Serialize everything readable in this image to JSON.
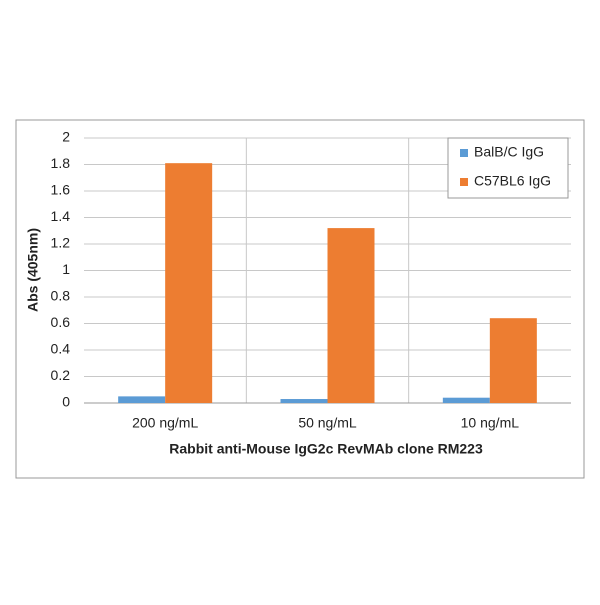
{
  "chart_data": {
    "type": "bar",
    "x_label": "Rabbit anti-Mouse  IgG2c RevMAb clone RM223",
    "y_label": "Abs (405nm)",
    "categories": [
      "200 ng/mL",
      "50 ng/mL",
      "10 ng/mL"
    ],
    "series": [
      {
        "name": "BalB/C IgG",
        "color": "#5b9bd5",
        "values": [
          0.05,
          0.03,
          0.04
        ]
      },
      {
        "name": "C57BL6 IgG",
        "color": "#ed7d31",
        "values": [
          1.81,
          1.32,
          0.64
        ]
      }
    ],
    "ylim": [
      0,
      2
    ],
    "yticks": [
      0,
      0.2,
      0.4,
      0.6,
      0.8,
      1,
      1.2,
      1.4,
      1.6,
      1.8,
      2
    ],
    "grid": true,
    "legend": "upper right"
  }
}
